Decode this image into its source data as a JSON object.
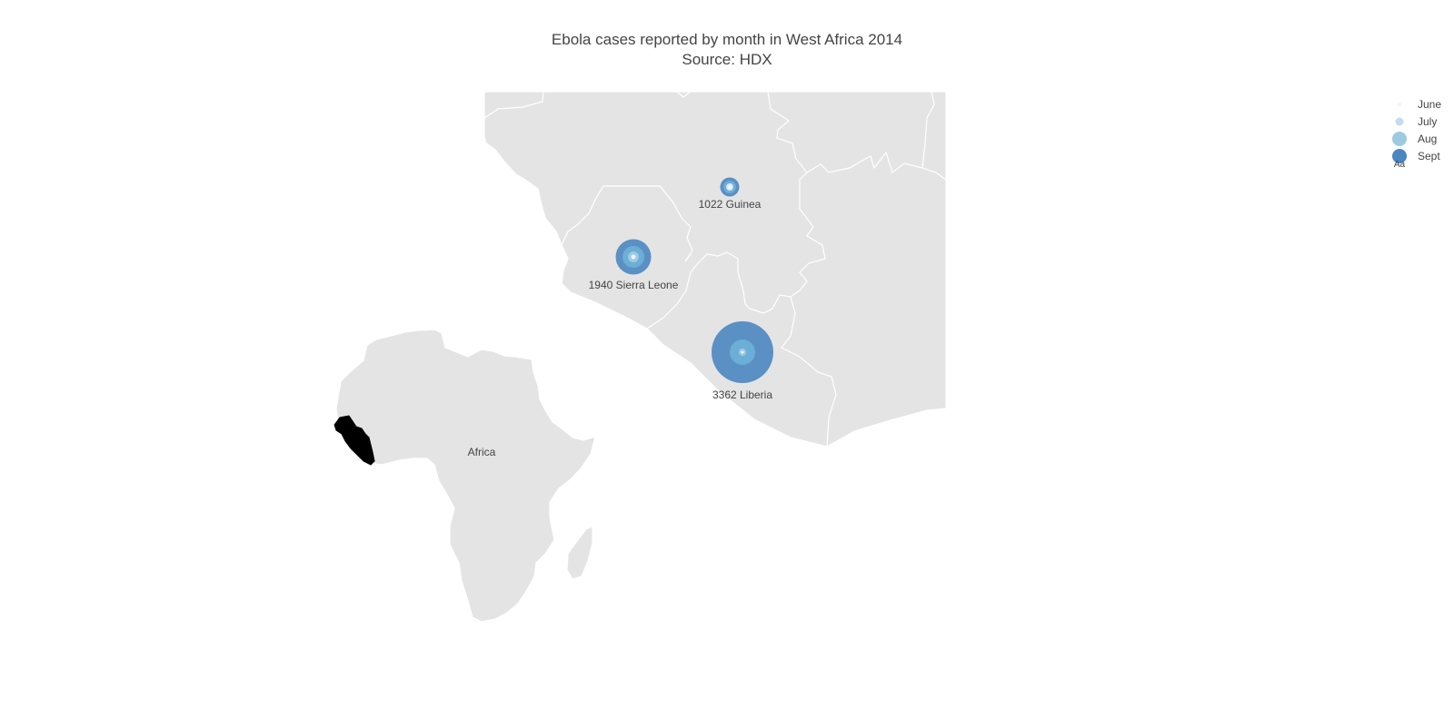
{
  "title": "Ebola cases reported by month in West Africa 2014",
  "subtitle": "Source: HDX",
  "inset_label": "Africa",
  "legend": {
    "items": [
      {
        "label": "June",
        "color": "#eff3ff"
      },
      {
        "label": "July",
        "color": "#c6dbef"
      },
      {
        "label": "Aug",
        "color": "#9ecae1"
      },
      {
        "label": "Sept",
        "color": "#6baed6"
      }
    ],
    "glyph": "Aa"
  },
  "chart_data": {
    "type": "scattergeo",
    "months": [
      "June",
      "July",
      "Aug",
      "Sept"
    ],
    "locations": [
      {
        "country": "Guinea",
        "label": "1022 Guinea",
        "cases_sept": 1022
      },
      {
        "country": "Sierra Leone",
        "label": "1940 Sierra Leone",
        "cases_sept": 1940
      },
      {
        "country": "Liberia",
        "label": "3362 Liberia",
        "cases_sept": 3362
      }
    ],
    "colors": {
      "land": "#e4e4e4",
      "borders": "#ffffff",
      "highlight": "#000000",
      "marker": "#4a86c0"
    }
  }
}
